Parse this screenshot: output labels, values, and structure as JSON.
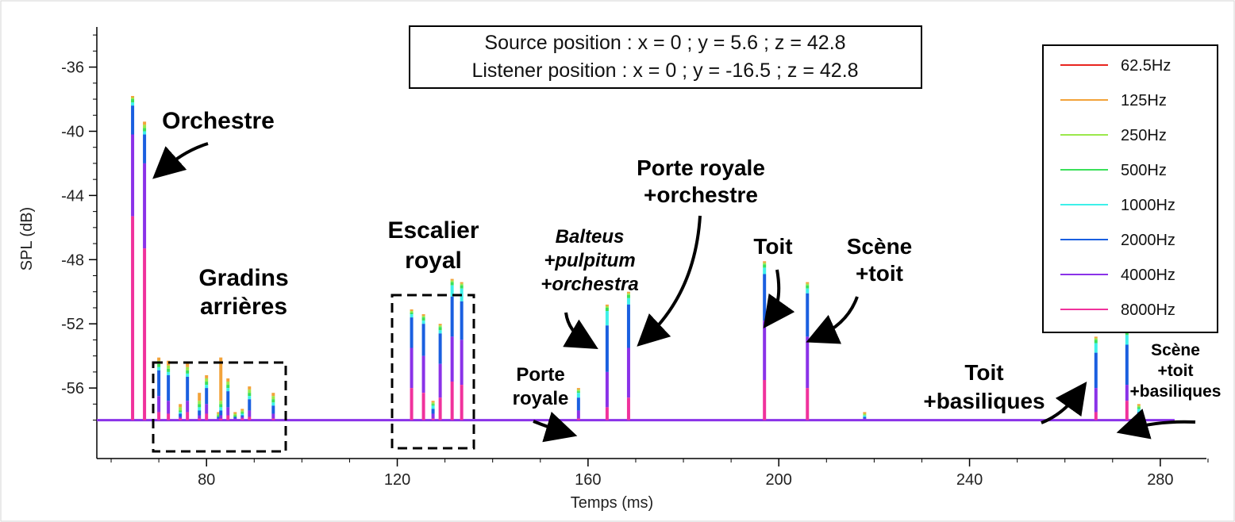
{
  "chart_data": {
    "type": "line",
    "xlabel": "Temps (ms)",
    "ylabel": "SPL (dB)",
    "xlim": [
      57,
      293
    ],
    "ylim": [
      -59.9,
      -33.5
    ],
    "baseline": -58.0,
    "grid": false,
    "x_ticks": [
      80,
      120,
      160,
      200,
      240,
      280
    ],
    "y_ticks": [
      -36,
      -40,
      -44,
      -48,
      -52,
      -56
    ],
    "legend_position": "top-right",
    "info_box": [
      "Source position : x = 0 ; y = 5.6 ; z = 42.8",
      "Listener position : x = 0 ; y = -16.5 ; z = 42.8"
    ],
    "series": [
      {
        "name": "62.5Hz",
        "color": "#e8251f"
      },
      {
        "name": "125Hz",
        "color": "#f2a33a"
      },
      {
        "name": "250Hz",
        "color": "#9be84b"
      },
      {
        "name": "500Hz",
        "color": "#3be05a"
      },
      {
        "name": "1000Hz",
        "color": "#3ef0ea"
      },
      {
        "name": "2000Hz",
        "color": "#1a5fe0"
      },
      {
        "name": "4000Hz",
        "color": "#8a32e8"
      },
      {
        "name": "8000Hz",
        "color": "#f0329c"
      }
    ],
    "peaks": [
      {
        "x": 64.5,
        "levels": [
          -37.8,
          -37.9,
          -38.0,
          -38.2,
          -38.4,
          -40.2,
          -45.3
        ]
      },
      {
        "x": 67.0,
        "levels": [
          -39.4,
          -39.6,
          -39.8,
          -40.0,
          -40.2,
          -42.0,
          -47.3
        ]
      },
      {
        "x": 70.0,
        "levels": [
          -54.1,
          -54.3,
          -54.5,
          -54.7,
          -54.9,
          -56.5,
          -57.5
        ]
      },
      {
        "x": 72.0,
        "levels": [
          -54.3,
          -54.6,
          -54.8,
          -55.0,
          -55.2,
          -56.8,
          -57.6
        ]
      },
      {
        "x": 74.5,
        "levels": [
          -57.0,
          -57.2,
          -57.4,
          -57.5,
          -57.6,
          -57.8,
          -57.9
        ]
      },
      {
        "x": 76.0,
        "levels": [
          -54.4,
          -54.7,
          -54.9,
          -55.1,
          -55.3,
          -56.8,
          -57.5
        ]
      },
      {
        "x": 78.5,
        "levels": [
          -56.3,
          -56.8,
          -57.0,
          -57.2,
          -57.4,
          -57.7,
          -57.9
        ]
      },
      {
        "x": 80.0,
        "levels": [
          -55.2,
          -55.4,
          -55.6,
          -55.8,
          -56.0,
          -57.0,
          -57.6
        ]
      },
      {
        "x": 82.5,
        "levels": [
          -57.5,
          -57.6,
          -57.7,
          -57.8,
          -57.8,
          -57.9,
          -58.0
        ]
      },
      {
        "x": 83.0,
        "levels": [
          -54.1,
          -56.8,
          -57.0,
          -57.2,
          -57.4,
          -57.7,
          -57.9
        ]
      },
      {
        "x": 84.5,
        "levels": [
          -55.4,
          -55.6,
          -55.8,
          -56.0,
          -56.2,
          -57.2,
          -57.7
        ]
      },
      {
        "x": 86.0,
        "levels": [
          -57.5,
          -57.6,
          -57.7,
          -57.8,
          -57.8,
          -57.9,
          -58.0
        ]
      },
      {
        "x": 87.5,
        "levels": [
          -57.3,
          -57.4,
          -57.5,
          -57.6,
          -57.7,
          -57.8,
          -57.9
        ]
      },
      {
        "x": 89.0,
        "levels": [
          -55.9,
          -56.1,
          -56.3,
          -56.5,
          -56.7,
          -57.4,
          -57.8
        ]
      },
      {
        "x": 94.0,
        "levels": [
          -56.3,
          -56.5,
          -56.7,
          -56.9,
          -57.1,
          -57.6,
          -57.9
        ]
      },
      {
        "x": 123.0,
        "levels": [
          -51.1,
          -51.2,
          -51.3,
          -51.4,
          -51.6,
          -53.5,
          -56.0
        ]
      },
      {
        "x": 125.5,
        "levels": [
          -51.4,
          -51.5,
          -51.6,
          -51.8,
          -52.0,
          -54.0,
          -56.3
        ]
      },
      {
        "x": 127.5,
        "levels": [
          -56.8,
          -56.9,
          -57.0,
          -57.1,
          -57.3,
          -57.6,
          -57.9
        ]
      },
      {
        "x": 129.0,
        "levels": [
          -52.0,
          -52.1,
          -52.2,
          -52.4,
          -52.6,
          -54.5,
          -56.6
        ]
      },
      {
        "x": 131.5,
        "levels": [
          -49.2,
          -49.3,
          -49.4,
          -49.6,
          -50.3,
          -52.8,
          -55.6
        ]
      },
      {
        "x": 133.5,
        "levels": [
          -49.4,
          -49.5,
          -49.6,
          -49.8,
          -50.6,
          -53.0,
          -55.8
        ]
      },
      {
        "x": 158.0,
        "levels": [
          -56.0,
          -56.1,
          -56.2,
          -56.3,
          -56.6,
          -57.4,
          -57.9
        ]
      },
      {
        "x": 164.0,
        "levels": [
          -50.8,
          -50.9,
          -51.0,
          -51.2,
          -52.1,
          -55.0,
          -57.2
        ]
      },
      {
        "x": 168.5,
        "levels": [
          -50.0,
          -50.1,
          -50.2,
          -50.4,
          -50.8,
          -53.5,
          -56.6
        ]
      },
      {
        "x": 197.0,
        "levels": [
          -48.1,
          -48.2,
          -48.3,
          -48.5,
          -48.9,
          -51.8,
          -55.5
        ]
      },
      {
        "x": 206.0,
        "levels": [
          -49.4,
          -49.5,
          -49.6,
          -49.8,
          -50.1,
          -52.8,
          -56.0
        ]
      },
      {
        "x": 218.0,
        "levels": [
          -57.5,
          -57.6,
          -57.7,
          -57.7,
          -57.8,
          -57.9,
          -58.0
        ]
      },
      {
        "x": 266.5,
        "levels": [
          -52.8,
          -52.9,
          -53.0,
          -53.2,
          -53.8,
          -56.0,
          -57.5
        ]
      },
      {
        "x": 273.0,
        "levels": [
          -52.3,
          -52.4,
          -52.5,
          -52.7,
          -53.3,
          -55.8,
          -56.8
        ]
      },
      {
        "x": 275.5,
        "levels": [
          -57.0,
          -57.1,
          -57.2,
          -57.3,
          -57.5,
          -57.8,
          -58.0
        ]
      }
    ],
    "annotations": [
      {
        "id": "orchestre",
        "lines": [
          "Orchestre"
        ]
      },
      {
        "id": "gradins",
        "lines": [
          "Gradins",
          "arrières"
        ]
      },
      {
        "id": "escalier",
        "lines": [
          "Escalier",
          "royal"
        ]
      },
      {
        "id": "balteus",
        "lines": [
          "Balteus",
          "+pulpitum",
          "+orchestra"
        ]
      },
      {
        "id": "porte-royale",
        "lines": [
          "Porte",
          "royale"
        ]
      },
      {
        "id": "porte-orchestre",
        "lines": [
          "Porte royale",
          "+orchestre"
        ]
      },
      {
        "id": "toit",
        "lines": [
          "Toit"
        ]
      },
      {
        "id": "scene-toit",
        "lines": [
          "Scène",
          "+toit"
        ]
      },
      {
        "id": "toit-basiliques",
        "lines": [
          "Toit",
          "+basiliques"
        ]
      },
      {
        "id": "scene-toit-basiliques",
        "lines": [
          "Scène",
          "+toit",
          "+basiliques"
        ]
      }
    ]
  }
}
